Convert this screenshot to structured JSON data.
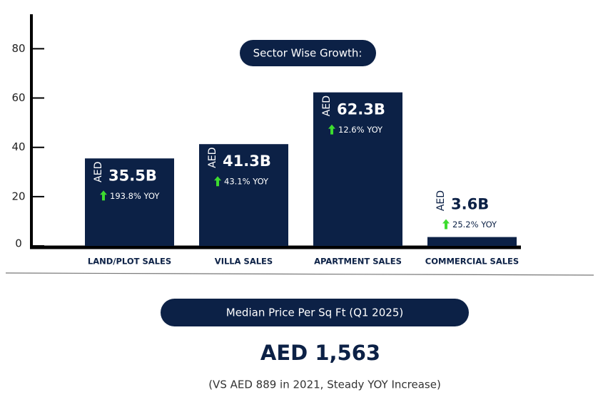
{
  "chart_data": {
    "type": "bar",
    "title": "Sector Wise Growth:",
    "categories": [
      "LAND/PLOT SALES",
      "VILLA SALES",
      "APARTMENT SALES",
      "COMMERCIAL SALES"
    ],
    "values": [
      35.5,
      41.3,
      62.3,
      3.6
    ],
    "value_labels": [
      "35.5B",
      "41.3B",
      "62.3B",
      "3.6B"
    ],
    "value_prefix": "AED",
    "yoy_labels": [
      "193.8% YOY",
      "43.1% YOY",
      "12.6% YOY",
      "25.2% YOY"
    ],
    "color": "#0c2146",
    "ylim": [
      0,
      94
    ],
    "yticks": [
      0,
      20,
      40,
      60,
      80
    ]
  },
  "median_price": {
    "title": "Median Price Per Sq Ft (Q1 2025)",
    "value": "AED 1,563",
    "note": "(VS AED 889 in 2021, Steady YOY Increase)"
  }
}
